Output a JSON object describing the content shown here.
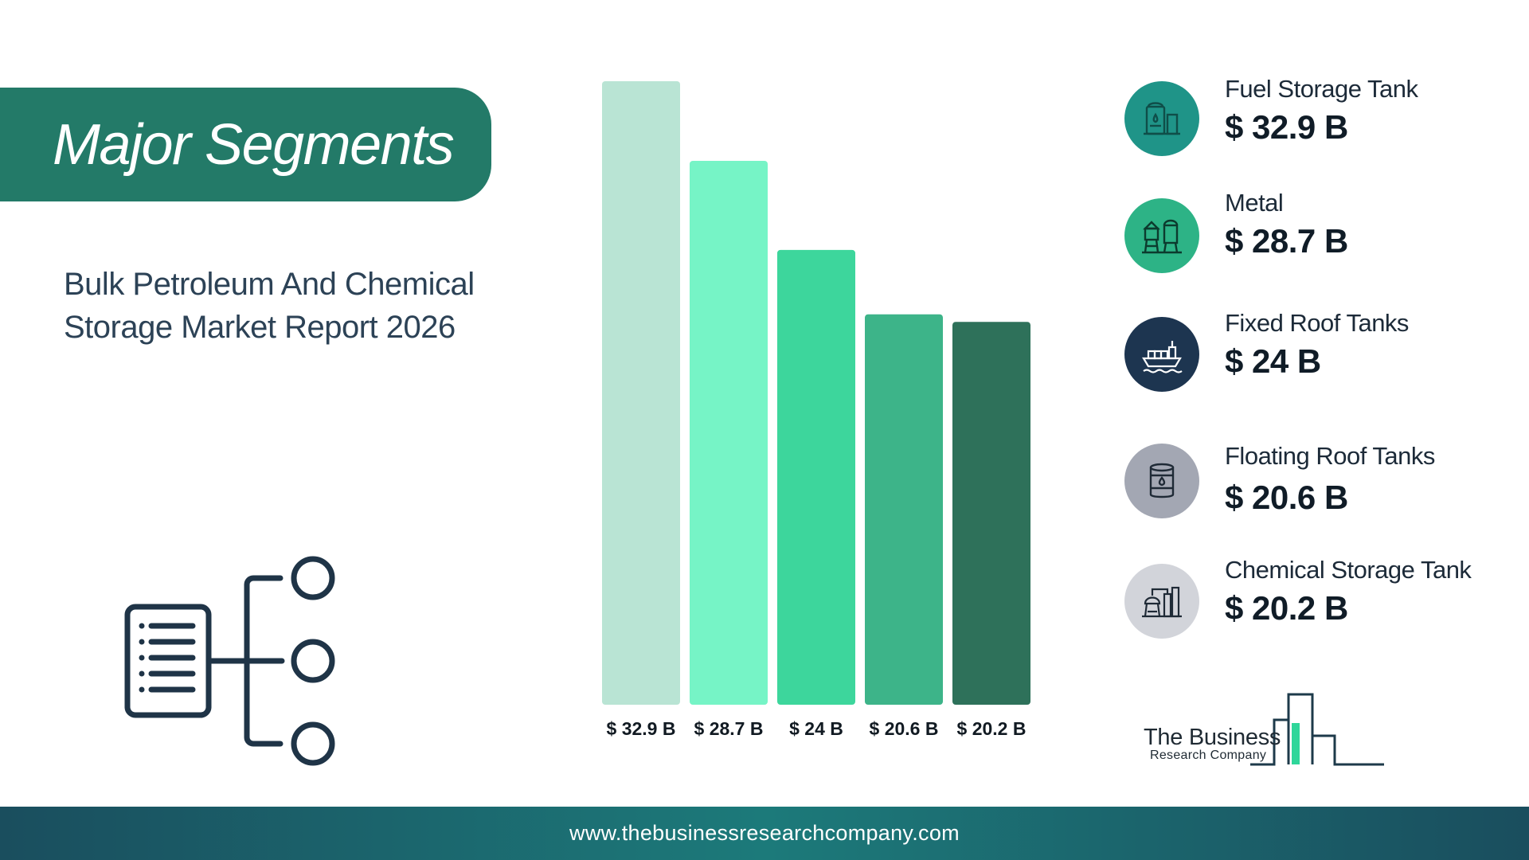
{
  "header": {
    "title": "Major Segments",
    "report_title_line1": "Bulk Petroleum And Chemical",
    "report_title_line2": "Storage Market Report 2026"
  },
  "chart_data": {
    "type": "bar",
    "categories": [
      "Fuel Storage Tank",
      "Metal",
      "Fixed Roof Tanks",
      "Floating Roof Tanks",
      "Chemical Storage Tank"
    ],
    "values": [
      32.9,
      28.7,
      24,
      20.6,
      20.2
    ],
    "value_labels": [
      "$ 32.9 B",
      "$ 28.7 B",
      "$ 24 B",
      "$ 20.6 B",
      "$ 20.2 B"
    ],
    "colors": [
      "#b9e4d4",
      "#76f4c6",
      "#3dd69c",
      "#3db489",
      "#2e715a"
    ],
    "unit": "$ B",
    "ylim": [
      0,
      32.9
    ],
    "grid": false,
    "legend_placement": "right"
  },
  "legend": [
    {
      "name": "Fuel Storage Tank",
      "value": "$ 32.9 B",
      "icon": "fuel-tank-icon",
      "bg": "#1f9488"
    },
    {
      "name": "Metal",
      "value": "$ 28.7 B",
      "icon": "silo-icon",
      "bg": "#2db386"
    },
    {
      "name": "Fixed Roof Tanks",
      "value": "$ 24 B",
      "icon": "cargo-ship-icon",
      "bg": "#1d3550"
    },
    {
      "name": "Floating Roof Tanks",
      "value": "$ 20.6 B",
      "icon": "oil-barrel-icon",
      "bg": "#a3a7b3"
    },
    {
      "name": "Chemical Storage Tank",
      "value": "$ 20.2 B",
      "icon": "chemical-plant-icon",
      "bg": "#d2d4da"
    }
  ],
  "logo": {
    "line1": "The Business",
    "line2": "Research Company"
  },
  "footer": {
    "url": "www.thebusinessresearchcompany.com"
  }
}
